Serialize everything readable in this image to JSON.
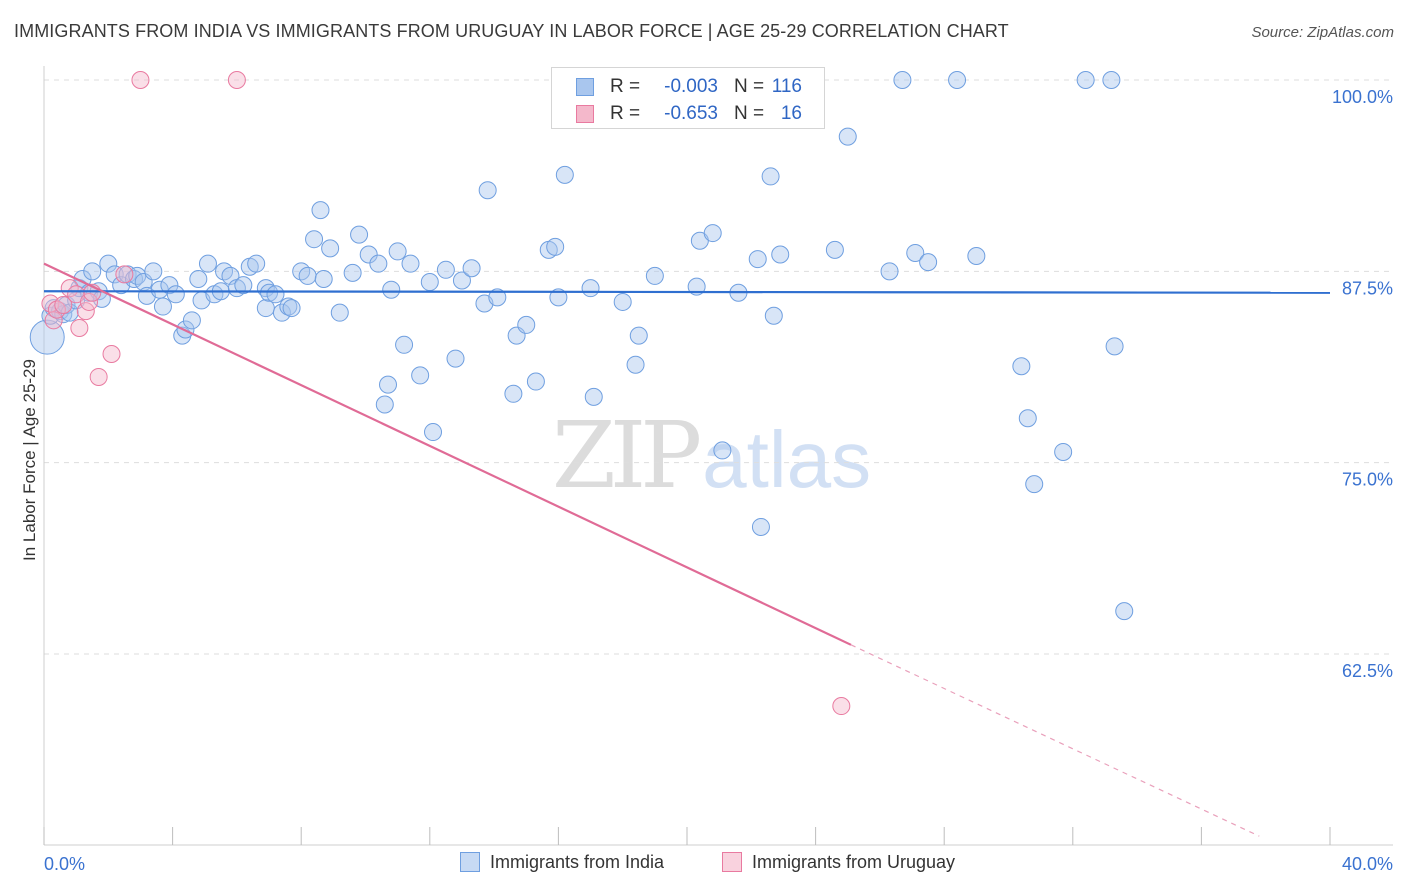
{
  "title": "IMMIGRANTS FROM INDIA VS IMMIGRANTS FROM URUGUAY IN LABOR FORCE | AGE 25-29 CORRELATION CHART",
  "source": "Source: ZipAtlas.com",
  "watermark": {
    "zip": "ZIP",
    "atlas": "atlas"
  },
  "legend": {
    "r_label": "R =",
    "n_label": "N =",
    "india": {
      "r": "-0.003",
      "n": "116"
    },
    "uruguay": {
      "r": "-0.653",
      "n": "16"
    }
  },
  "bottom_legend": {
    "india": "Immigrants from India",
    "uruguay": "Immigrants from Uruguay"
  },
  "colors": {
    "india": "#6f9fe0",
    "india_fill": "#a9c6ee",
    "uruguay": "#e97aa0",
    "uruguay_fill": "#f4b8cb",
    "grid": "#dddddd",
    "tick_text": "#3a72d0"
  },
  "chart_data": {
    "type": "scatter",
    "title": "IMMIGRANTS FROM INDIA VS IMMIGRANTS FROM URUGUAY IN LABOR FORCE | AGE 25-29 CORRELATION CHART",
    "xlabel": "",
    "ylabel": "In Labor Force | Age 25-29",
    "xlim": [
      0,
      40
    ],
    "ylim": [
      52,
      102
    ],
    "x_tick_labels": [
      "0.0%",
      "40.0%"
    ],
    "y_ticks": [
      62.5,
      75.0,
      87.5,
      100.0
    ],
    "y_tick_labels": [
      "62.5%",
      "75.0%",
      "87.5%",
      "100.0%"
    ],
    "grid": true,
    "series": [
      {
        "name": "Immigrants from India",
        "r": -0.003,
        "n": 116,
        "trend": {
          "x": [
            0,
            40
          ],
          "y": [
            86.2,
            86.1
          ]
        },
        "points": [
          [
            0.1,
            83.2
          ],
          [
            0.2,
            84.6
          ],
          [
            0.3,
            85.1
          ],
          [
            0.5,
            84.9
          ],
          [
            0.6,
            84.7
          ],
          [
            0.7,
            85.3
          ],
          [
            0.8,
            84.8
          ],
          [
            1.0,
            85.6
          ],
          [
            1.1,
            86.4
          ],
          [
            1.2,
            87.0
          ],
          [
            1.4,
            86.1
          ],
          [
            1.5,
            87.5
          ],
          [
            1.7,
            86.2
          ],
          [
            1.8,
            85.7
          ],
          [
            2.0,
            88.0
          ],
          [
            2.2,
            87.3
          ],
          [
            2.4,
            86.6
          ],
          [
            2.6,
            87.3
          ],
          [
            2.8,
            87.0
          ],
          [
            2.9,
            87.2
          ],
          [
            3.1,
            86.8
          ],
          [
            3.2,
            85.9
          ],
          [
            3.4,
            87.5
          ],
          [
            3.6,
            86.3
          ],
          [
            3.7,
            85.2
          ],
          [
            3.9,
            86.6
          ],
          [
            4.1,
            86.0
          ],
          [
            4.3,
            83.3
          ],
          [
            4.4,
            83.7
          ],
          [
            4.6,
            84.3
          ],
          [
            4.8,
            87.0
          ],
          [
            4.9,
            85.6
          ],
          [
            5.1,
            88.0
          ],
          [
            5.3,
            86.0
          ],
          [
            5.5,
            86.2
          ],
          [
            5.6,
            87.5
          ],
          [
            5.8,
            87.2
          ],
          [
            6.0,
            86.4
          ],
          [
            6.2,
            86.6
          ],
          [
            6.4,
            87.8
          ],
          [
            6.6,
            88.0
          ],
          [
            6.9,
            86.4
          ],
          [
            6.9,
            85.1
          ],
          [
            7.0,
            86.1
          ],
          [
            7.2,
            86.0
          ],
          [
            7.4,
            84.8
          ],
          [
            7.6,
            85.2
          ],
          [
            7.7,
            85.1
          ],
          [
            8.0,
            87.5
          ],
          [
            8.2,
            87.2
          ],
          [
            8.4,
            89.6
          ],
          [
            8.6,
            91.5
          ],
          [
            8.7,
            87.0
          ],
          [
            8.9,
            89.0
          ],
          [
            9.2,
            84.8
          ],
          [
            9.6,
            87.4
          ],
          [
            9.8,
            89.9
          ],
          [
            10.1,
            88.6
          ],
          [
            10.4,
            88.0
          ],
          [
            10.6,
            78.8
          ],
          [
            10.7,
            80.1
          ],
          [
            10.8,
            86.3
          ],
          [
            11.0,
            88.8
          ],
          [
            11.2,
            82.7
          ],
          [
            11.4,
            88.0
          ],
          [
            11.7,
            80.7
          ],
          [
            12.0,
            86.8
          ],
          [
            12.1,
            77.0
          ],
          [
            12.5,
            87.6
          ],
          [
            12.8,
            81.8
          ],
          [
            13.0,
            86.9
          ],
          [
            13.3,
            87.7
          ],
          [
            13.7,
            85.4
          ],
          [
            13.8,
            92.8
          ],
          [
            14.1,
            85.8
          ],
          [
            14.6,
            79.5
          ],
          [
            14.7,
            83.3
          ],
          [
            15.0,
            84.0
          ],
          [
            15.3,
            80.3
          ],
          [
            15.7,
            88.9
          ],
          [
            15.9,
            89.1
          ],
          [
            16.0,
            85.8
          ],
          [
            16.2,
            93.8
          ],
          [
            17.0,
            86.4
          ],
          [
            17.1,
            79.3
          ],
          [
            18.0,
            85.5
          ],
          [
            18.4,
            81.4
          ],
          [
            18.5,
            83.3
          ],
          [
            19.0,
            87.2
          ],
          [
            20.3,
            86.5
          ],
          [
            20.4,
            89.5
          ],
          [
            20.8,
            90.0
          ],
          [
            21.1,
            75.8
          ],
          [
            21.6,
            86.1
          ],
          [
            22.2,
            88.3
          ],
          [
            22.3,
            70.8
          ],
          [
            22.6,
            93.7
          ],
          [
            22.7,
            84.6
          ],
          [
            22.9,
            88.6
          ],
          [
            24.6,
            88.9
          ],
          [
            25.0,
            96.3
          ],
          [
            26.3,
            87.5
          ],
          [
            26.7,
            100.0
          ],
          [
            27.1,
            88.7
          ],
          [
            27.5,
            88.1
          ],
          [
            28.4,
            100.0
          ],
          [
            29.0,
            88.5
          ],
          [
            30.4,
            81.3
          ],
          [
            30.6,
            77.9
          ],
          [
            30.8,
            73.6
          ],
          [
            31.7,
            75.7
          ],
          [
            32.4,
            100.0
          ],
          [
            33.2,
            100.0
          ],
          [
            33.3,
            82.6
          ],
          [
            33.6,
            65.3
          ]
        ]
      },
      {
        "name": "Immigrants from Uruguay",
        "r": -0.653,
        "n": 16,
        "trend": {
          "x": [
            0,
            25.1
          ],
          "y": [
            88.0,
            63.1
          ]
        },
        "trend_dashed": {
          "x": [
            25.1,
            37.8
          ],
          "y": [
            63.1,
            50.6
          ]
        },
        "points": [
          [
            0.2,
            85.4
          ],
          [
            0.3,
            84.3
          ],
          [
            0.4,
            85.0
          ],
          [
            0.6,
            85.3
          ],
          [
            0.8,
            86.4
          ],
          [
            1.0,
            86.0
          ],
          [
            1.1,
            83.8
          ],
          [
            1.3,
            84.9
          ],
          [
            1.4,
            85.5
          ],
          [
            1.5,
            86.1
          ],
          [
            1.7,
            80.6
          ],
          [
            2.1,
            82.1
          ],
          [
            2.5,
            87.3
          ],
          [
            3.0,
            100.0
          ],
          [
            6.0,
            100.0
          ],
          [
            24.8,
            59.1
          ]
        ]
      }
    ]
  }
}
